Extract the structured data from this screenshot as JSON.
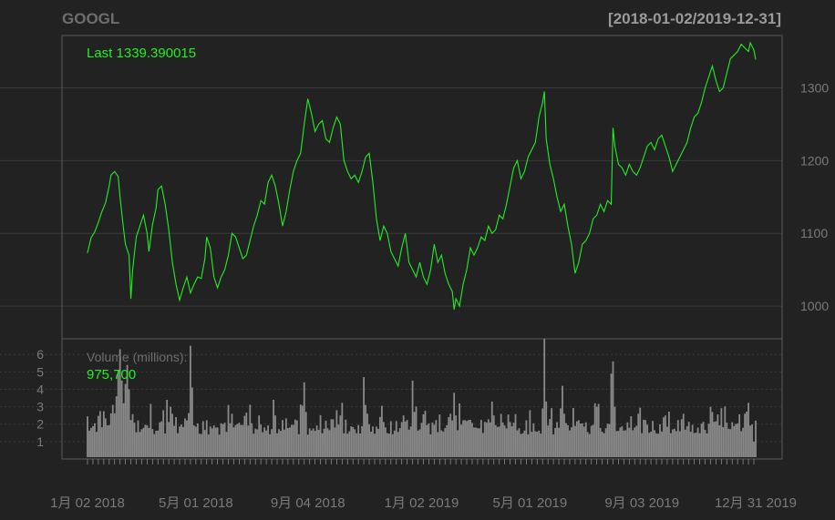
{
  "chart_data": {
    "type": "line",
    "title": "GOOGL",
    "date_range": "[2018-01-02/2019-12-31]",
    "price_panel": {
      "last_label": "Last 1339.390015",
      "series_color": "#22ee22",
      "ylim": [
        955,
        1372
      ],
      "y_ticks": [
        1000,
        1100,
        1200,
        1300
      ],
      "y_tick_labels": [
        "1000",
        "1100",
        "1200",
        "1300"
      ],
      "points": [
        [
          0,
          1073
        ],
        [
          2,
          1094
        ],
        [
          4,
          1102
        ],
        [
          6,
          1115
        ],
        [
          8,
          1130
        ],
        [
          10,
          1142
        ],
        [
          12,
          1165
        ],
        [
          13,
          1180
        ],
        [
          15,
          1185
        ],
        [
          17,
          1178
        ],
        [
          18,
          1150
        ],
        [
          20,
          1105
        ],
        [
          21,
          1085
        ],
        [
          23,
          1070
        ],
        [
          24,
          1010
        ],
        [
          25,
          1050
        ],
        [
          27,
          1095
        ],
        [
          29,
          1110
        ],
        [
          31,
          1125
        ],
        [
          33,
          1100
        ],
        [
          34,
          1075
        ],
        [
          36,
          1112
        ],
        [
          38,
          1135
        ],
        [
          39,
          1160
        ],
        [
          41,
          1165
        ],
        [
          43,
          1140
        ],
        [
          45,
          1105
        ],
        [
          47,
          1060
        ],
        [
          49,
          1030
        ],
        [
          51,
          1008
        ],
        [
          53,
          1025
        ],
        [
          55,
          1040
        ],
        [
          57,
          1018
        ],
        [
          59,
          1030
        ],
        [
          61,
          1040
        ],
        [
          63,
          1038
        ],
        [
          65,
          1065
        ],
        [
          66,
          1095
        ],
        [
          68,
          1080
        ],
        [
          70,
          1040
        ],
        [
          72,
          1025
        ],
        [
          74,
          1040
        ],
        [
          76,
          1050
        ],
        [
          78,
          1070
        ],
        [
          80,
          1100
        ],
        [
          82,
          1095
        ],
        [
          84,
          1080
        ],
        [
          86,
          1065
        ],
        [
          88,
          1070
        ],
        [
          90,
          1090
        ],
        [
          92,
          1110
        ],
        [
          94,
          1125
        ],
        [
          96,
          1145
        ],
        [
          98,
          1140
        ],
        [
          100,
          1170
        ],
        [
          102,
          1180
        ],
        [
          104,
          1165
        ],
        [
          106,
          1140
        ],
        [
          108,
          1110
        ],
        [
          110,
          1130
        ],
        [
          112,
          1160
        ],
        [
          114,
          1185
        ],
        [
          116,
          1200
        ],
        [
          118,
          1210
        ],
        [
          120,
          1250
        ],
        [
          122,
          1285
        ],
        [
          124,
          1265
        ],
        [
          126,
          1240
        ],
        [
          128,
          1250
        ],
        [
          130,
          1255
        ],
        [
          132,
          1230
        ],
        [
          134,
          1225
        ],
        [
          136,
          1245
        ],
        [
          138,
          1260
        ],
        [
          140,
          1250
        ],
        [
          142,
          1200
        ],
        [
          144,
          1185
        ],
        [
          146,
          1175
        ],
        [
          148,
          1180
        ],
        [
          150,
          1170
        ],
        [
          152,
          1185
        ],
        [
          154,
          1205
        ],
        [
          156,
          1210
        ],
        [
          158,
          1170
        ],
        [
          160,
          1120
        ],
        [
          162,
          1090
        ],
        [
          164,
          1110
        ],
        [
          166,
          1100
        ],
        [
          168,
          1075
        ],
        [
          170,
          1065
        ],
        [
          172,
          1055
        ],
        [
          174,
          1080
        ],
        [
          176,
          1100
        ],
        [
          178,
          1060
        ],
        [
          180,
          1050
        ],
        [
          182,
          1040
        ],
        [
          184,
          1060
        ],
        [
          186,
          1040
        ],
        [
          188,
          1030
        ],
        [
          190,
          1050
        ],
        [
          192,
          1085
        ],
        [
          194,
          1060
        ],
        [
          196,
          1070
        ],
        [
          198,
          1045
        ],
        [
          200,
          1030
        ],
        [
          202,
          1020
        ],
        [
          203,
          995
        ],
        [
          204,
          1010
        ],
        [
          206,
          1000
        ],
        [
          208,
          1030
        ],
        [
          210,
          1050
        ],
        [
          212,
          1080
        ],
        [
          214,
          1070
        ],
        [
          216,
          1080
        ],
        [
          218,
          1095
        ],
        [
          220,
          1090
        ],
        [
          222,
          1110
        ],
        [
          224,
          1100
        ],
        [
          226,
          1105
        ],
        [
          228,
          1125
        ],
        [
          230,
          1120
        ],
        [
          232,
          1140
        ],
        [
          234,
          1165
        ],
        [
          236,
          1190
        ],
        [
          238,
          1200
        ],
        [
          240,
          1175
        ],
        [
          242,
          1185
        ],
        [
          244,
          1205
        ],
        [
          246,
          1215
        ],
        [
          248,
          1225
        ],
        [
          250,
          1260
        ],
        [
          252,
          1280
        ],
        [
          253,
          1295
        ],
        [
          254,
          1230
        ],
        [
          256,
          1195
        ],
        [
          258,
          1175
        ],
        [
          260,
          1150
        ],
        [
          262,
          1130
        ],
        [
          264,
          1140
        ],
        [
          266,
          1110
        ],
        [
          268,
          1085
        ],
        [
          270,
          1045
        ],
        [
          272,
          1060
        ],
        [
          274,
          1085
        ],
        [
          276,
          1090
        ],
        [
          278,
          1100
        ],
        [
          280,
          1120
        ],
        [
          282,
          1125
        ],
        [
          284,
          1140
        ],
        [
          286,
          1130
        ],
        [
          288,
          1145
        ],
        [
          290,
          1140
        ],
        [
          291,
          1245
        ],
        [
          292,
          1220
        ],
        [
          294,
          1195
        ],
        [
          296,
          1190
        ],
        [
          298,
          1180
        ],
        [
          300,
          1195
        ],
        [
          302,
          1185
        ],
        [
          304,
          1180
        ],
        [
          306,
          1190
        ],
        [
          308,
          1205
        ],
        [
          310,
          1220
        ],
        [
          312,
          1225
        ],
        [
          314,
          1215
        ],
        [
          316,
          1230
        ],
        [
          318,
          1235
        ],
        [
          320,
          1220
        ],
        [
          322,
          1205
        ],
        [
          324,
          1185
        ],
        [
          326,
          1195
        ],
        [
          328,
          1205
        ],
        [
          330,
          1215
        ],
        [
          332,
          1225
        ],
        [
          334,
          1245
        ],
        [
          336,
          1260
        ],
        [
          338,
          1265
        ],
        [
          340,
          1280
        ],
        [
          342,
          1300
        ],
        [
          344,
          1315
        ],
        [
          346,
          1330
        ],
        [
          348,
          1310
        ],
        [
          350,
          1295
        ],
        [
          352,
          1300
        ],
        [
          354,
          1320
        ],
        [
          356,
          1340
        ],
        [
          358,
          1345
        ],
        [
          360,
          1350
        ],
        [
          362,
          1360
        ],
        [
          364,
          1355
        ],
        [
          366,
          1350
        ],
        [
          367,
          1362
        ],
        [
          369,
          1352
        ],
        [
          370,
          1339
        ]
      ]
    },
    "volume_panel": {
      "label": "Volume (millions):",
      "last_value": "975,700",
      "bar_color": "#8a8a8a",
      "ylim": [
        0,
        6.9
      ],
      "y_ticks": [
        1,
        2,
        3,
        4,
        5,
        6
      ],
      "y_tick_labels": [
        "1",
        "2",
        "3",
        "4",
        "5",
        "6"
      ],
      "baseline": 1.8,
      "spikes": [
        [
          16,
          3.6
        ],
        [
          17,
          5.1
        ],
        [
          18,
          6.3
        ],
        [
          19,
          4.5
        ],
        [
          20,
          3.2
        ],
        [
          21,
          4.3
        ],
        [
          22,
          5.4
        ],
        [
          23,
          4.0
        ],
        [
          42,
          2.8
        ],
        [
          44,
          3.4
        ],
        [
          46,
          3.0
        ],
        [
          47,
          2.6
        ],
        [
          57,
          6.5
        ],
        [
          58,
          4.1
        ],
        [
          78,
          3.1
        ],
        [
          80,
          2.6
        ],
        [
          95,
          2.5
        ],
        [
          103,
          3.4
        ],
        [
          104,
          2.5
        ],
        [
          120,
          4.4
        ],
        [
          121,
          2.7
        ],
        [
          140,
          2.5
        ],
        [
          153,
          4.7
        ],
        [
          154,
          3.1
        ],
        [
          155,
          2.6
        ],
        [
          175,
          2.5
        ],
        [
          180,
          4.5
        ],
        [
          181,
          2.7
        ],
        [
          200,
          2.4
        ],
        [
          201,
          2.6
        ],
        [
          203,
          3.8
        ],
        [
          204,
          2.5
        ],
        [
          224,
          3.3
        ],
        [
          225,
          2.5
        ],
        [
          245,
          2.8
        ],
        [
          252,
          2.9
        ],
        [
          253,
          6.9
        ],
        [
          254,
          3.3
        ],
        [
          263,
          4.2
        ],
        [
          264,
          2.6
        ],
        [
          282,
          3.0
        ],
        [
          290,
          4.9
        ],
        [
          291,
          5.6
        ],
        [
          292,
          3.0
        ],
        [
          305,
          2.6
        ],
        [
          330,
          2.6
        ],
        [
          345,
          3.0
        ],
        [
          346,
          2.7
        ],
        [
          364,
          2.6
        ],
        [
          369,
          1.0
        ]
      ]
    },
    "x_range": [
      0,
      370
    ],
    "x_ticks": [
      0,
      60,
      122,
      185,
      245,
      307,
      370
    ],
    "x_tick_labels": [
      "1月 02 2018",
      "5月 01 2018",
      "9月 04 2018",
      "1月 02 2019",
      "5月 01 2019",
      "9月 03 2019",
      "12月 31 2019"
    ],
    "grid": true,
    "background_color": "#222222",
    "grid_color": "#3a3a3a"
  }
}
